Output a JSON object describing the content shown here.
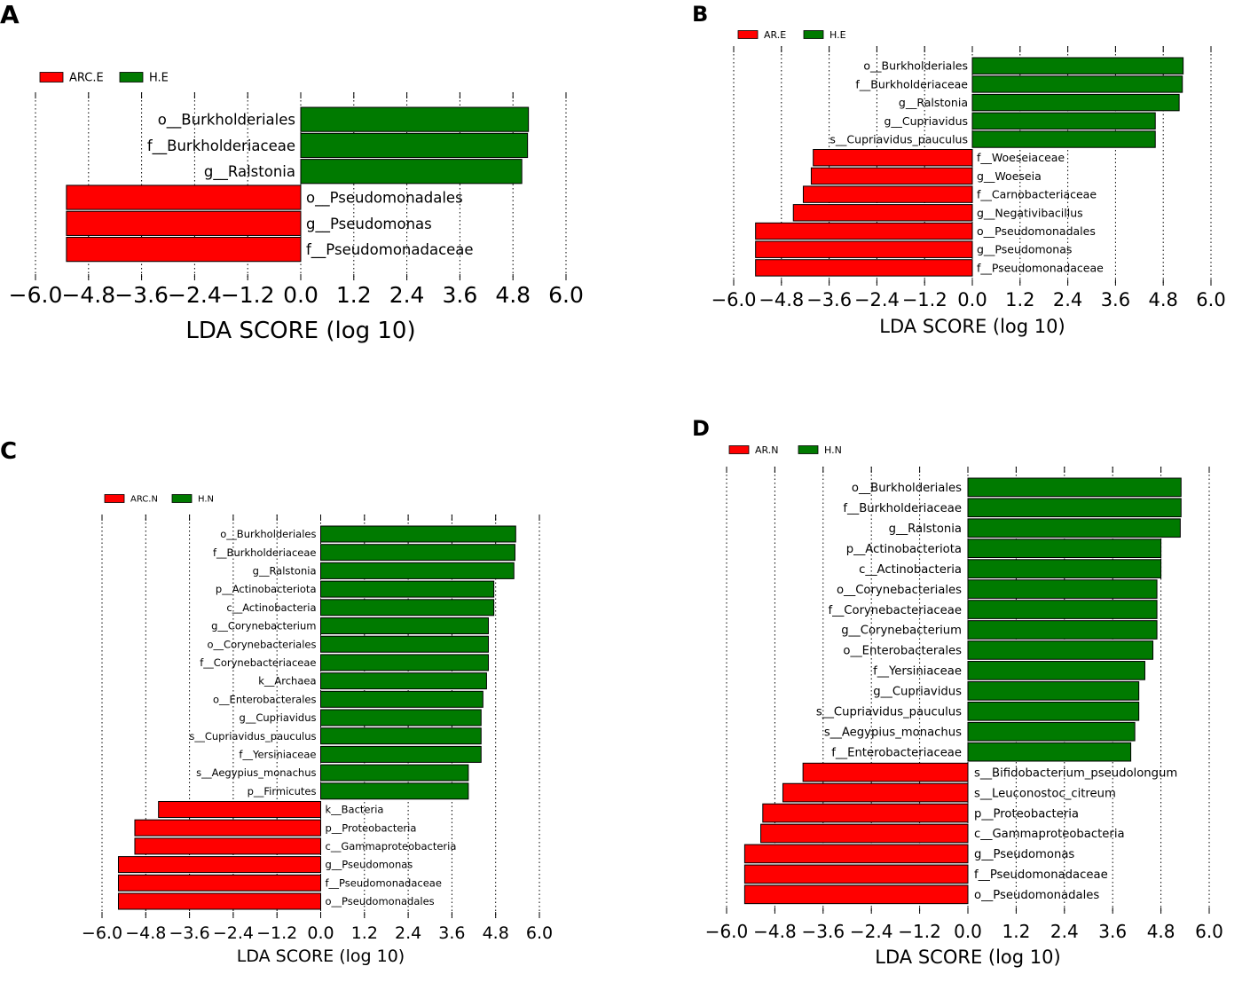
{
  "chart_data": [
    {
      "type": "bar",
      "panel_label": "A",
      "orientation": "horizontal",
      "legend": [
        {
          "name": "ARC.E",
          "color": "#ff0000"
        },
        {
          "name": "H.E",
          "color": "#007a00"
        }
      ],
      "xlabel": "LDA SCORE (log 10)",
      "xlim": [
        -6.0,
        6.0
      ],
      "xticks": [
        "−6.0",
        "−4.8",
        "−3.6",
        "−2.4",
        "−1.2",
        "0.0",
        "1.2",
        "2.4",
        "3.6",
        "4.8",
        "6.0"
      ],
      "categories": [
        "o__Burkholderiales",
        "f__Burkholderiaceae",
        "g__Ralstonia",
        "o__Pseudomonadales",
        "g__Pseudomonas",
        "f__Pseudomonadaceae"
      ],
      "values": [
        5.15,
        5.13,
        5.0,
        -5.3,
        -5.3,
        -5.3
      ],
      "groups": [
        "H.E",
        "H.E",
        "H.E",
        "ARC.E",
        "ARC.E",
        "ARC.E"
      ]
    },
    {
      "type": "bar",
      "panel_label": "B",
      "orientation": "horizontal",
      "legend": [
        {
          "name": "AR.E",
          "color": "#ff0000"
        },
        {
          "name": "H.E",
          "color": "#007a00"
        }
      ],
      "xlabel": "LDA SCORE (log 10)",
      "xlim": [
        -6.0,
        6.0
      ],
      "xticks": [
        "−6.0",
        "−4.8",
        "−3.6",
        "−2.4",
        "−1.2",
        "0.0",
        "1.2",
        "2.4",
        "3.6",
        "4.8",
        "6.0"
      ],
      "categories": [
        "o__Burkholderiales",
        "f__Burkholderiaceae",
        "g__Ralstonia",
        "g__Cupriavidus",
        "s__Cupriavidus_pauculus",
        "f__Woeseiaceae",
        "g__Woeseia",
        "f__Carnobacteriaceae",
        "g__Negativibacillus",
        "o__Pseudomonadales",
        "g__Pseudomonas",
        "f__Pseudomonadaceae"
      ],
      "values": [
        5.3,
        5.28,
        5.2,
        4.6,
        4.6,
        -4.0,
        -4.05,
        -4.25,
        -4.5,
        -5.45,
        -5.45,
        -5.45
      ],
      "groups": [
        "H.E",
        "H.E",
        "H.E",
        "H.E",
        "H.E",
        "AR.E",
        "AR.E",
        "AR.E",
        "AR.E",
        "AR.E",
        "AR.E",
        "AR.E"
      ]
    },
    {
      "type": "bar",
      "panel_label": "C",
      "orientation": "horizontal",
      "legend": [
        {
          "name": "ARC.N",
          "color": "#ff0000"
        },
        {
          "name": "H.N",
          "color": "#007a00"
        }
      ],
      "xlabel": "LDA SCORE (log 10)",
      "xlim": [
        -6.0,
        6.0
      ],
      "xticks": [
        "−6.0",
        "−4.8",
        "−3.6",
        "−2.4",
        "−1.2",
        "0.0",
        "1.2",
        "2.4",
        "3.6",
        "4.8",
        "6.0"
      ],
      "categories": [
        "o__Burkholderiales",
        "f__Burkholderiaceae",
        "g__Ralstonia",
        "p__Actinobacteriota",
        "c__Actinobacteria",
        "g__Corynebacterium",
        "o__Corynebacteriales",
        "f__Corynebacteriaceae",
        "k__Archaea",
        "o__Enterobacterales",
        "g__Cupriavidus",
        "s__Cupriavidus_pauculus",
        "f__Yersiniaceae",
        "s__Aegypius_monachus",
        "p__Firmicutes",
        "k__Bacteria",
        "p__Proteobacteria",
        "c__Gammaproteobacteria",
        "g__Pseudomonas",
        "f__Pseudomonadaceae",
        "o__Pseudomonadales"
      ],
      "values": [
        5.35,
        5.33,
        5.3,
        4.75,
        4.75,
        4.6,
        4.6,
        4.6,
        4.55,
        4.45,
        4.4,
        4.4,
        4.4,
        4.05,
        4.05,
        -4.45,
        -5.1,
        -5.1,
        -5.55,
        -5.55,
        -5.55
      ],
      "groups": [
        "H.N",
        "H.N",
        "H.N",
        "H.N",
        "H.N",
        "H.N",
        "H.N",
        "H.N",
        "H.N",
        "H.N",
        "H.N",
        "H.N",
        "H.N",
        "H.N",
        "H.N",
        "ARC.N",
        "ARC.N",
        "ARC.N",
        "ARC.N",
        "ARC.N",
        "ARC.N"
      ]
    },
    {
      "type": "bar",
      "panel_label": "D",
      "orientation": "horizontal",
      "legend": [
        {
          "name": "AR.N",
          "color": "#ff0000"
        },
        {
          "name": "H.N",
          "color": "#007a00"
        }
      ],
      "xlabel": "LDA SCORE (log 10)",
      "xlim": [
        -6.0,
        6.0
      ],
      "xticks": [
        "−6.0",
        "−4.8",
        "−3.6",
        "−2.4",
        "−1.2",
        "0.0",
        "1.2",
        "2.4",
        "3.6",
        "4.8",
        "6.0"
      ],
      "categories": [
        "o__Burkholderiales",
        "f__Burkholderiaceae",
        "g__Ralstonia",
        "p__Actinobacteriota",
        "c__Actinobacteria",
        "o__Corynebacteriales",
        "f__Corynebacteriaceae",
        "g__Corynebacterium",
        "o__Enterobacterales",
        "f__Yersiniaceae",
        "g__Cupriavidus",
        "s__Cupriavidus_pauculus",
        "s__Aegypius_monachus",
        "f__Enterobacteriaceae",
        "s__Bifidobacterium_pseudolongum",
        "s__Leuconostoc_citreum",
        "p__Proteobacteria",
        "c__Gammaproteobacteria",
        "g__Pseudomonas",
        "f__Pseudomonadaceae",
        "o__Pseudomonadales"
      ],
      "values": [
        5.3,
        5.3,
        5.28,
        4.8,
        4.8,
        4.7,
        4.7,
        4.7,
        4.6,
        4.4,
        4.25,
        4.25,
        4.15,
        4.05,
        -4.1,
        -4.6,
        -5.1,
        -5.15,
        -5.55,
        -5.55,
        -5.55
      ],
      "groups": [
        "H.N",
        "H.N",
        "H.N",
        "H.N",
        "H.N",
        "H.N",
        "H.N",
        "H.N",
        "H.N",
        "H.N",
        "H.N",
        "H.N",
        "H.N",
        "H.N",
        "AR.N",
        "AR.N",
        "AR.N",
        "AR.N",
        "AR.N",
        "AR.N",
        "AR.N"
      ]
    }
  ]
}
